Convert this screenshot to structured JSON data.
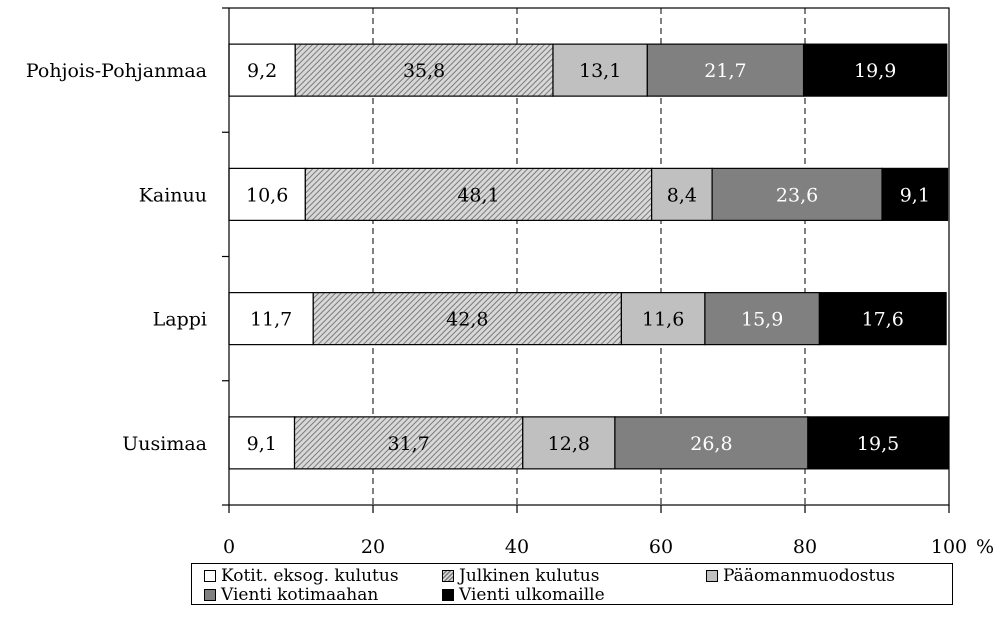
{
  "chart_data": {
    "type": "bar",
    "orientation": "horizontal",
    "stacked": true,
    "categories": [
      "Uusimaa",
      "Lappi",
      "Kainuu",
      "Pohjois-Pohjanmaa"
    ],
    "x_ticks": [
      "0",
      "20",
      "40",
      "60",
      "80",
      "100"
    ],
    "x_unit": "%",
    "xlim": [
      0,
      100
    ],
    "grid": "vertical dashed",
    "legend_position": "bottom",
    "series": [
      {
        "name": "Kotit. eksog. kulutus",
        "values": [
          9.1,
          11.7,
          10.6,
          9.2
        ],
        "labels": [
          "9,1",
          "11,7",
          "10,6",
          "9,2"
        ],
        "color": "#ffffff"
      },
      {
        "name": "Julkinen kulutus",
        "values": [
          31.7,
          42.8,
          48.1,
          35.8
        ],
        "labels": [
          "31,7",
          "42,8",
          "48,1",
          "35,8"
        ],
        "color": "hatched"
      },
      {
        "name": "Pääomanmuodostus",
        "values": [
          12.8,
          11.6,
          8.4,
          13.1
        ],
        "labels": [
          "12,8",
          "11,6",
          "8,4",
          "13,1"
        ],
        "color": "#c0c0c0"
      },
      {
        "name": "Vienti kotimaahan",
        "values": [
          26.8,
          15.9,
          23.6,
          21.7
        ],
        "labels": [
          "26,8",
          "15,9",
          "23,6",
          "21,7"
        ],
        "color": "#808080"
      },
      {
        "name": "Vienti ulkomaille",
        "values": [
          19.5,
          17.6,
          9.1,
          19.9
        ],
        "labels": [
          "19,5",
          "17,6",
          "9,1",
          "19,9"
        ],
        "color": "#000000"
      }
    ]
  },
  "legend": {
    "items": [
      "Kotit. eksog. kulutus",
      "Julkinen kulutus",
      "Pääomanmuodostus",
      "Vienti kotimaahan",
      "Vienti ulkomaille"
    ]
  }
}
